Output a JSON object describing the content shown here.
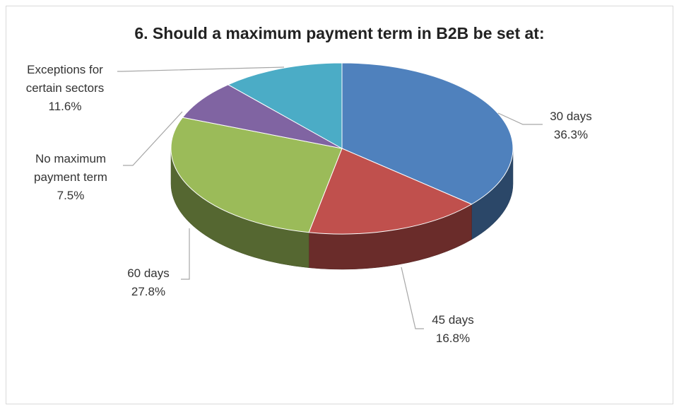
{
  "chart_data": {
    "type": "pie",
    "title": "6. Should a maximum payment term in B2B be set at:",
    "categories": [
      "30 days",
      "45 days",
      "60 days",
      "No maximum payment term",
      "Exceptions for certain sectors"
    ],
    "values": [
      36.3,
      16.8,
      27.8,
      7.5,
      11.6
    ],
    "value_labels": [
      "36.3%",
      "16.8%",
      "27.8%",
      "7.5%",
      "11.6%"
    ],
    "colors": [
      "#4f81bd",
      "#c0504d",
      "#9bbb59",
      "#8064a2",
      "#4bacc6"
    ]
  }
}
